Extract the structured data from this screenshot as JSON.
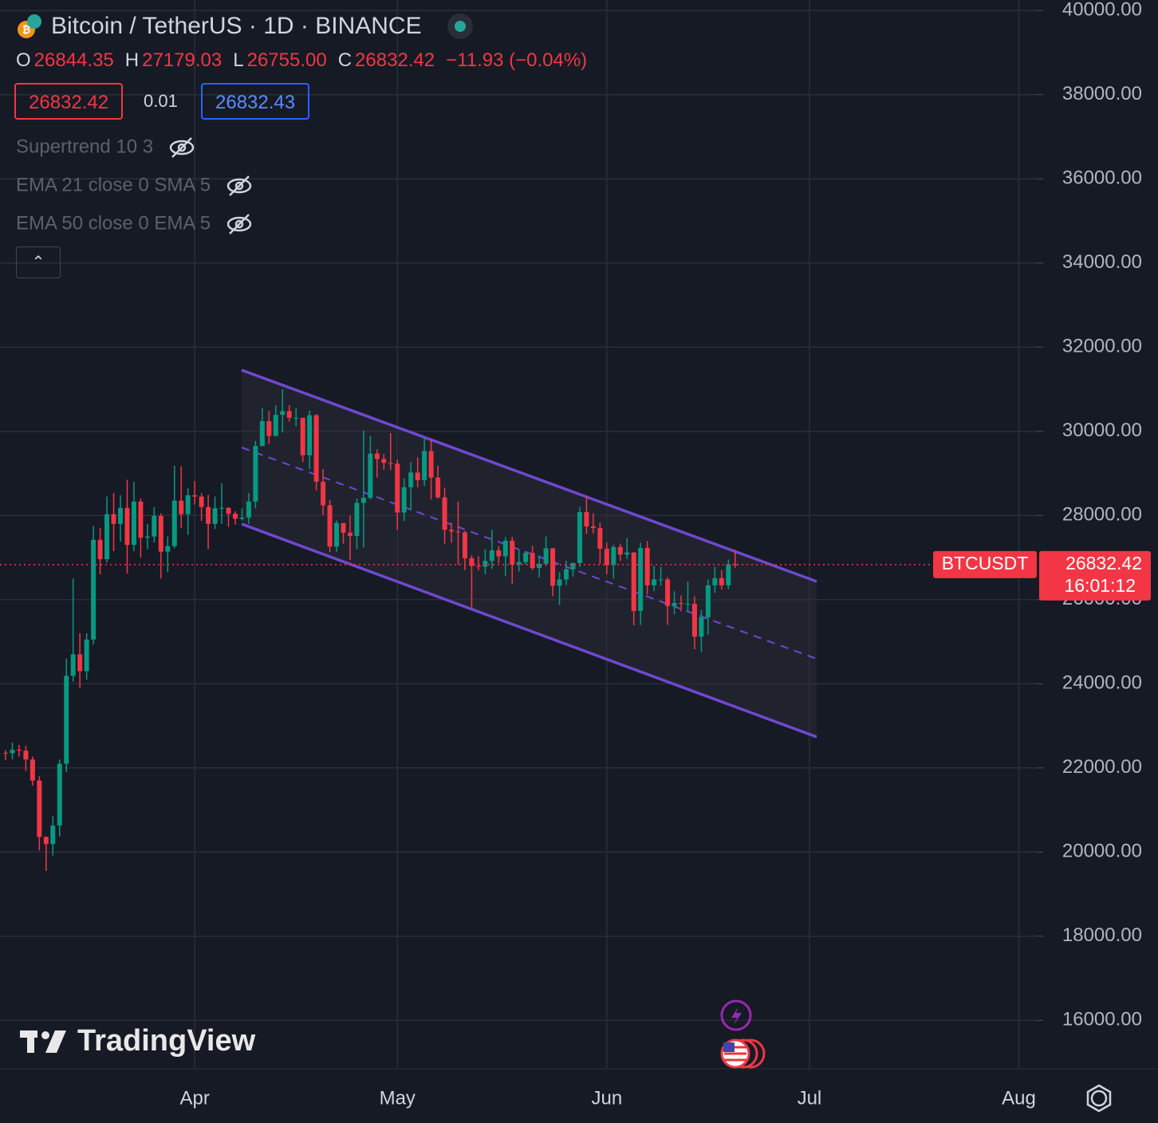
{
  "header": {
    "title": "Bitcoin / TetherUS · 1D · BINANCE",
    "ohlc": [
      {
        "key": "O",
        "value": "26844.35"
      },
      {
        "key": "H",
        "value": "27179.03"
      },
      {
        "key": "L",
        "value": "26755.00"
      },
      {
        "key": "C",
        "value": "26832.42"
      }
    ],
    "change": "−11.93 (−0.04%)"
  },
  "order": {
    "sell": "26832.42",
    "spread": "0.01",
    "buy": "26832.43"
  },
  "indicators": [
    "Supertrend 10 3",
    "EMA 21 close 0 SMA 5",
    "EMA 50 close 0 EMA 5"
  ],
  "logo": "TradingView",
  "chart_data": {
    "type": "candlestick",
    "categories": [
      null,
      null,
      null,
      null,
      null,
      null,
      null,
      null,
      null,
      null,
      null,
      null,
      null,
      null,
      null,
      null,
      null,
      null,
      null,
      null,
      null,
      null,
      null,
      null,
      null,
      null,
      null,
      null,
      null,
      null,
      null,
      null,
      null,
      null,
      null,
      null,
      null,
      null,
      null,
      null,
      null,
      null,
      null,
      null,
      null,
      null,
      null,
      null,
      null,
      null,
      null,
      null,
      null,
      null,
      null,
      null,
      null,
      null,
      null,
      null,
      null,
      null,
      null,
      null,
      null,
      null,
      null,
      null,
      null,
      null,
      null,
      null,
      null,
      null,
      null,
      null,
      null,
      null,
      null,
      null,
      null,
      null,
      null,
      null,
      null,
      null,
      null,
      null,
      null,
      null,
      null,
      null,
      null,
      null,
      null,
      null,
      null,
      null,
      null,
      null,
      null,
      null,
      null,
      null,
      null,
      null,
      null,
      null,
      null
    ],
    "candles": [
      [
        22360,
        22420,
        22180,
        22350
      ],
      [
        22350,
        22600,
        22200,
        22430
      ],
      [
        22430,
        22550,
        22270,
        22410
      ],
      [
        22410,
        22530,
        21930,
        22200
      ],
      [
        22200,
        22270,
        21580,
        21700
      ],
      [
        21700,
        21800,
        20040,
        20360
      ],
      [
        20360,
        20370,
        19550,
        20190
      ],
      [
        20190,
        20850,
        19920,
        20630
      ],
      [
        20630,
        22200,
        20370,
        22100
      ],
      [
        22100,
        24600,
        21900,
        24190
      ],
      [
        24190,
        26500,
        24050,
        24700
      ],
      [
        24700,
        25200,
        23900,
        24300
      ],
      [
        24300,
        25200,
        24100,
        25050
      ],
      [
        25050,
        27750,
        24930,
        27420
      ],
      [
        27420,
        27700,
        26600,
        26960
      ],
      [
        26960,
        28450,
        26880,
        28030
      ],
      [
        28030,
        28530,
        27150,
        27800
      ],
      [
        27800,
        28480,
        27380,
        28180
      ],
      [
        28180,
        28850,
        26620,
        27300
      ],
      [
        27300,
        28800,
        27150,
        28330
      ],
      [
        28330,
        28400,
        27000,
        27470
      ],
      [
        27470,
        27800,
        27200,
        27500
      ],
      [
        27500,
        28200,
        27360,
        27990
      ],
      [
        27990,
        28050,
        26500,
        27140
      ],
      [
        27140,
        27500,
        26650,
        27270
      ],
      [
        27270,
        29180,
        27220,
        28350
      ],
      [
        28350,
        29170,
        27700,
        28030
      ],
      [
        28030,
        28650,
        27540,
        28480
      ],
      [
        28480,
        28820,
        28260,
        28450
      ],
      [
        28450,
        28530,
        27870,
        28200
      ],
      [
        28200,
        28490,
        27200,
        27800
      ],
      [
        27800,
        28450,
        27680,
        28170
      ],
      [
        28170,
        28770,
        27800,
        28180
      ],
      [
        28180,
        28200,
        27730,
        28040
      ],
      [
        28040,
        28100,
        27780,
        27920
      ],
      [
        27920,
        28170,
        27880,
        27950
      ],
      [
        27950,
        28530,
        27800,
        28330
      ],
      [
        28330,
        29770,
        28170,
        29650
      ],
      [
        29650,
        30550,
        29650,
        30240
      ],
      [
        30240,
        30480,
        29700,
        29890
      ],
      [
        29890,
        30620,
        29880,
        30390
      ],
      [
        30390,
        31000,
        29970,
        30480
      ],
      [
        30480,
        30620,
        30230,
        30320
      ],
      [
        30320,
        30550,
        30120,
        30320
      ],
      [
        30320,
        30320,
        29270,
        29430
      ],
      [
        29430,
        30490,
        29100,
        30380
      ],
      [
        30380,
        30410,
        28600,
        28800
      ],
      [
        28800,
        29100,
        28010,
        28240
      ],
      [
        28240,
        28370,
        27130,
        27260
      ],
      [
        27260,
        27880,
        27130,
        27820
      ],
      [
        27820,
        27820,
        27330,
        27590
      ],
      [
        27590,
        28000,
        26940,
        27510
      ],
      [
        27510,
        28400,
        27200,
        28300
      ],
      [
        28300,
        30020,
        27240,
        28420
      ],
      [
        28420,
        29890,
        28380,
        29470
      ],
      [
        29470,
        29570,
        28900,
        29340
      ],
      [
        29340,
        29460,
        29090,
        29250
      ],
      [
        29250,
        29960,
        29080,
        29230
      ],
      [
        29230,
        29330,
        27660,
        28070
      ],
      [
        28070,
        28880,
        27870,
        28670
      ],
      [
        28670,
        29270,
        28120,
        29020
      ],
      [
        29020,
        29380,
        28670,
        28840
      ],
      [
        28840,
        29850,
        28700,
        29530
      ],
      [
        29530,
        29820,
        28380,
        28900
      ],
      [
        28900,
        29180,
        28400,
        28430
      ],
      [
        28430,
        28660,
        27330,
        27660
      ],
      [
        27660,
        27830,
        27350,
        27620
      ],
      [
        27620,
        28330,
        26830,
        27600
      ],
      [
        27600,
        27630,
        26700,
        26980
      ],
      [
        26980,
        27050,
        25810,
        26800
      ],
      [
        26800,
        27030,
        26700,
        26780
      ],
      [
        26780,
        27200,
        26600,
        26920
      ],
      [
        26920,
        27660,
        26730,
        27170
      ],
      [
        27170,
        27270,
        26870,
        27030
      ],
      [
        27030,
        27480,
        26560,
        27400
      ],
      [
        27400,
        27490,
        26380,
        26830
      ],
      [
        26830,
        27200,
        26670,
        26890
      ],
      [
        26890,
        27150,
        26830,
        27110
      ],
      [
        27110,
        27280,
        26700,
        26750
      ],
      [
        26750,
        27050,
        26530,
        26850
      ],
      [
        26850,
        27500,
        26800,
        27220
      ],
      [
        27220,
        27220,
        26080,
        26330
      ],
      [
        26330,
        26650,
        25870,
        26480
      ],
      [
        26480,
        26930,
        26340,
        26720
      ],
      [
        26720,
        26880,
        26550,
        26870
      ],
      [
        26870,
        28200,
        26780,
        28080
      ],
      [
        28080,
        28450,
        27560,
        27740
      ],
      [
        27740,
        28050,
        27570,
        27700
      ],
      [
        27700,
        27830,
        26850,
        27210
      ],
      [
        27210,
        27350,
        26600,
        26820
      ],
      [
        26820,
        27300,
        26500,
        27250
      ],
      [
        27250,
        27330,
        26920,
        27070
      ],
      [
        27070,
        27460,
        26960,
        27120
      ],
      [
        27120,
        27130,
        25390,
        25730
      ],
      [
        25730,
        27350,
        25400,
        27230
      ],
      [
        27230,
        27390,
        26120,
        26340
      ],
      [
        26340,
        26800,
        26200,
        26480
      ],
      [
        26480,
        26780,
        26330,
        26480
      ],
      [
        26480,
        26530,
        25400,
        25850
      ],
      [
        25850,
        26200,
        25650,
        25920
      ],
      [
        25920,
        26100,
        25720,
        25900
      ],
      [
        25900,
        26430,
        25740,
        25900
      ],
      [
        25900,
        26080,
        24820,
        25120
      ],
      [
        25120,
        25750,
        24750,
        25580
      ],
      [
        25580,
        26480,
        25170,
        26340
      ],
      [
        26340,
        26780,
        26160,
        26510
      ],
      [
        26510,
        26700,
        26240,
        26340
      ],
      [
        26340,
        26950,
        26250,
        26840
      ],
      [
        26844.35,
        27179.03,
        26755,
        26832.42
      ]
    ],
    "up_color": "#089981",
    "down_color": "#f23645",
    "ylim": [
      14850,
      40250
    ],
    "yticks": [
      {
        "value": 16000,
        "label": "16000.00"
      },
      {
        "value": 18000,
        "label": "18000.00"
      },
      {
        "value": 20000,
        "label": "20000.00"
      },
      {
        "value": 22000,
        "label": "22000.00"
      },
      {
        "value": 24000,
        "label": "24000.00"
      },
      {
        "value": 26000,
        "label": "26000.00"
      },
      {
        "value": 28000,
        "label": "28000.00"
      },
      {
        "value": 30000,
        "label": "30000.00"
      },
      {
        "value": 32000,
        "label": "32000.00"
      },
      {
        "value": 34000,
        "label": "34000.00"
      },
      {
        "value": 36000,
        "label": "36000.00"
      },
      {
        "value": 38000,
        "label": "38000.00"
      },
      {
        "value": 40000,
        "label": "40000.00"
      }
    ],
    "xticks": [
      {
        "value": 28,
        "label": "Apr"
      },
      {
        "value": 58,
        "label": "May"
      },
      {
        "value": 89,
        "label": "Jun"
      },
      {
        "value": 119,
        "label": "Jul"
      },
      {
        "value": 150,
        "label": "Aug"
      }
    ],
    "grid": true,
    "last_price": {
      "symbol": "BTCUSDT",
      "value": 26832.42,
      "label": "26832.42",
      "countdown": "16:01:12"
    }
  }
}
